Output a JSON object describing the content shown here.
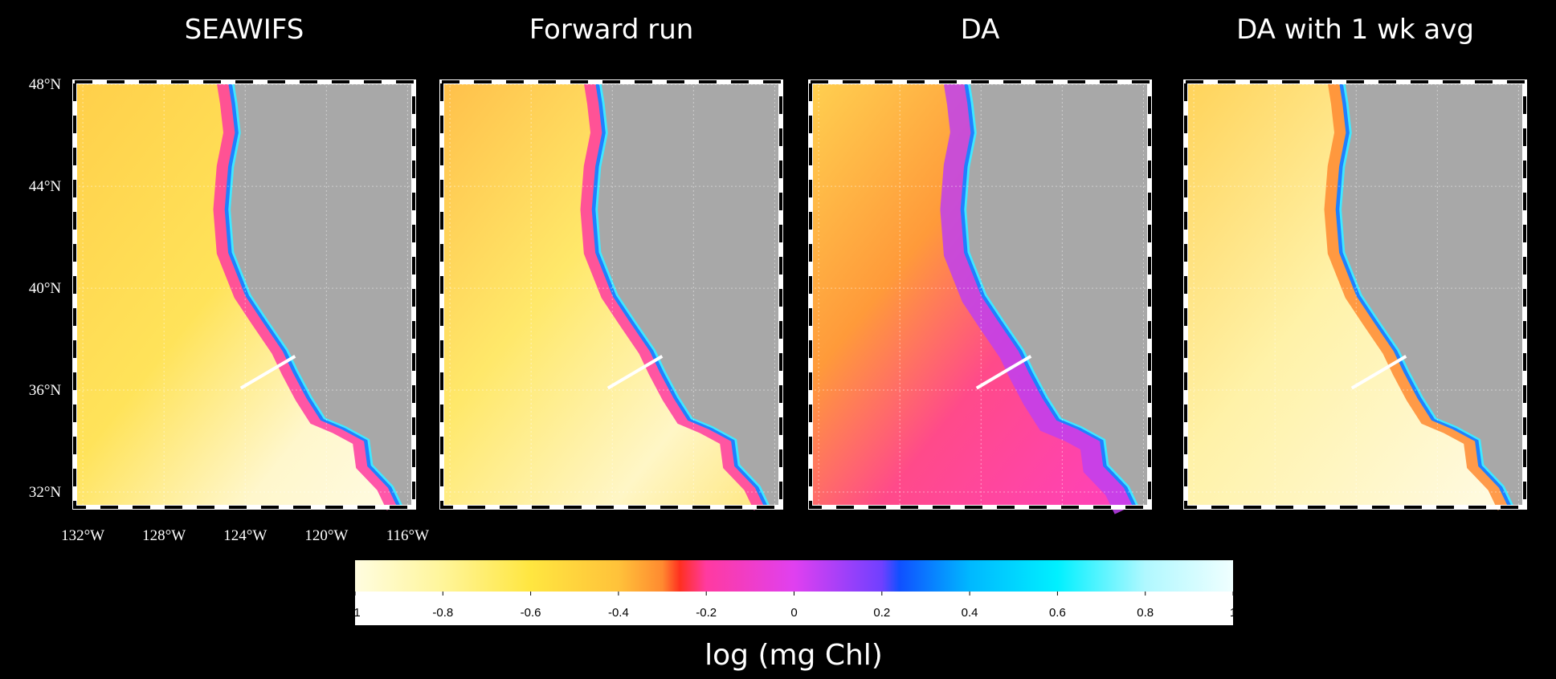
{
  "panels": [
    {
      "title": "SEAWIFS"
    },
    {
      "title": "Forward run"
    },
    {
      "title": "DA"
    },
    {
      "title": "DA with 1 wk avg"
    }
  ],
  "axes": {
    "lat_range": [
      31.4,
      48.1
    ],
    "lat_ticks": [
      {
        "value": 48,
        "label": "48°N"
      },
      {
        "value": 44,
        "label": "44°N"
      },
      {
        "value": 40,
        "label": "40°N"
      },
      {
        "value": 36,
        "label": "36°N"
      },
      {
        "value": 32,
        "label": "32°N"
      }
    ],
    "lon_range": [
      -132.4,
      -115.7
    ],
    "lon_ticks": [
      {
        "value": -132,
        "label": "132°W"
      },
      {
        "value": -128,
        "label": "128°W"
      },
      {
        "value": -124,
        "label": "124°W"
      },
      {
        "value": -120,
        "label": "120°W"
      },
      {
        "value": -116,
        "label": "116°W"
      }
    ]
  },
  "colorbar": {
    "range": [
      -1,
      1
    ],
    "ticks": [
      -1,
      -0.8,
      -0.6,
      -0.4,
      -0.2,
      0,
      0.2,
      0.4,
      0.6,
      0.8,
      1
    ],
    "label": "log (mg Chl)"
  }
}
